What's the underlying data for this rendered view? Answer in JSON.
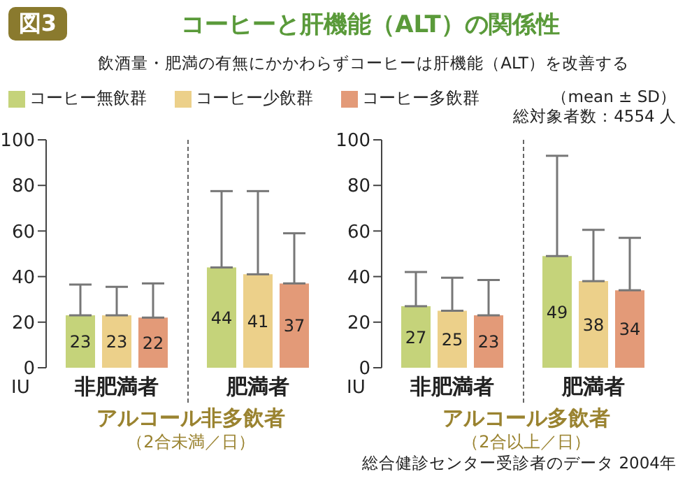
{
  "chart_data": [
    {
      "type": "bar",
      "title": "コーヒーと肝機能（ALT）の関係性",
      "subtitle": "飲酒量・肥満の有無にかかわらずコーヒーは肝機能（ALT）を改善する",
      "annotations": [
        "図3",
        "（2合未満／日）"
      ],
      "categories": [
        "非肥満者",
        "肥満者"
      ],
      "xlabel": "アルコール非多飲者",
      "ylabel": "IU",
      "ylim": [
        0,
        100
      ],
      "yticks": [
        0,
        20,
        40,
        60,
        80,
        100
      ],
      "legend": "top",
      "data_labels": true,
      "series": [
        {
          "name": "コーヒー無飲群",
          "color": "#c5d37a",
          "values": [
            23,
            44
          ],
          "errors": [
            [
              23,
              36.5
            ],
            [
              44,
              77.5
            ]
          ]
        },
        {
          "name": "コーヒー少飲群",
          "color": "#ecd08a",
          "values": [
            23,
            41
          ],
          "errors": [
            [
              23,
              35.5
            ],
            [
              41,
              77.5
            ]
          ]
        },
        {
          "name": "コーヒー多飲群",
          "color": "#e39a78",
          "values": [
            22,
            37
          ],
          "errors": [
            [
              22,
              37
            ],
            [
              37,
              59
            ]
          ]
        }
      ]
    },
    {
      "type": "bar",
      "annotations": [
        "（mean ± SD）",
        "総対象者数：4554 人",
        "総合健診センター受診者のデータ 2004年",
        "（2合以上／日）"
      ],
      "categories": [
        "非肥満者",
        "肥満者"
      ],
      "xlabel": "アルコール多飲者",
      "ylabel": "IU",
      "ylim": [
        0,
        100
      ],
      "yticks": [
        0,
        20,
        40,
        60,
        80,
        100
      ],
      "data_labels": true,
      "series": [
        {
          "color": "#c5d37a",
          "values": [
            27,
            49
          ],
          "errors": [
            [
              27,
              42
            ],
            [
              49,
              93
            ]
          ]
        },
        {
          "color": "#ecd08a",
          "values": [
            25,
            38
          ],
          "errors": [
            [
              25,
              39.5
            ],
            [
              38,
              60.5
            ]
          ]
        },
        {
          "color": "#e39a78",
          "values": [
            23,
            34
          ],
          "errors": [
            [
              23,
              38.5
            ],
            [
              34,
              57
            ]
          ]
        }
      ]
    }
  ]
}
